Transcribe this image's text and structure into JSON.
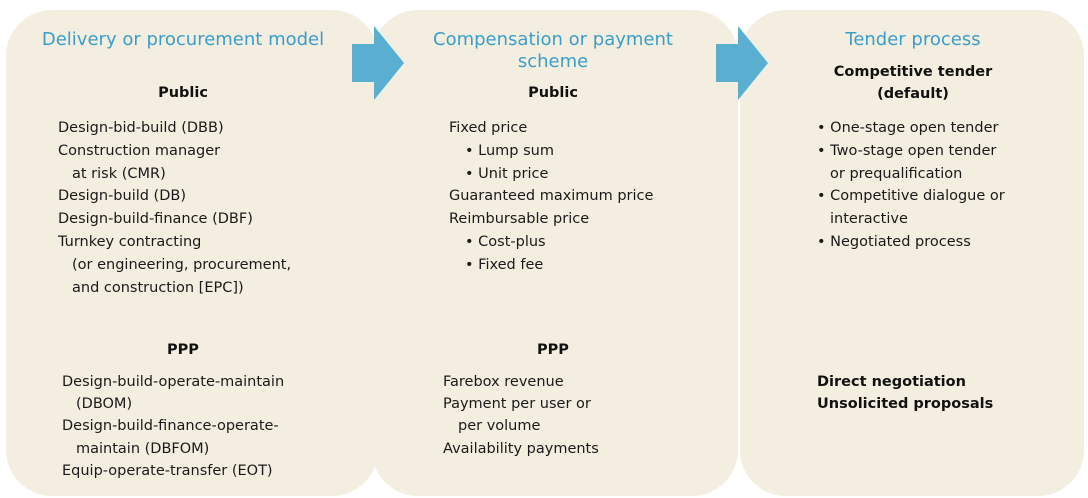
{
  "panels": [
    {
      "title": "Delivery or procurement model",
      "sections": [
        {
          "heading": "Public",
          "lines": [
            "Design-bid-build (DBB)",
            "Construction manager",
            "at risk (CMR)",
            "Design-build (DB)",
            "Design-build-finance (DBF)",
            "Turnkey contracting",
            "(or engineering, procurement,",
            "and construction [EPC])"
          ]
        },
        {
          "heading": "PPP",
          "lines": [
            "Design-build-operate-maintain",
            "(DBOM)",
            "Design-build-finance-operate-",
            "maintain (DBFOM)",
            "Equip-operate-transfer (EOT)"
          ]
        }
      ]
    },
    {
      "title": "Compensation or payment scheme",
      "sections": [
        {
          "heading": "Public",
          "lines": [
            "Fixed price",
            "• Lump sum",
            "• Unit price",
            "Guaranteed maximum price",
            "Reimbursable price",
            "• Cost-plus",
            "• Fixed fee"
          ]
        },
        {
          "heading": "PPP",
          "lines": [
            "Farebox revenue",
            "Payment per user or",
            "per volume",
            "Availability payments"
          ]
        }
      ]
    },
    {
      "title": "Tender process",
      "sections": [
        {
          "heading": "Competitive tender (default)",
          "lines": [
            "• One-stage open tender",
            "• Two-stage open tender",
            "or prequalification",
            "• Competitive dialogue or",
            "interactive",
            "• Negotiated process"
          ]
        },
        {
          "lines": [
            "Direct negotiation",
            "Unsolicited proposals"
          ]
        }
      ]
    }
  ]
}
